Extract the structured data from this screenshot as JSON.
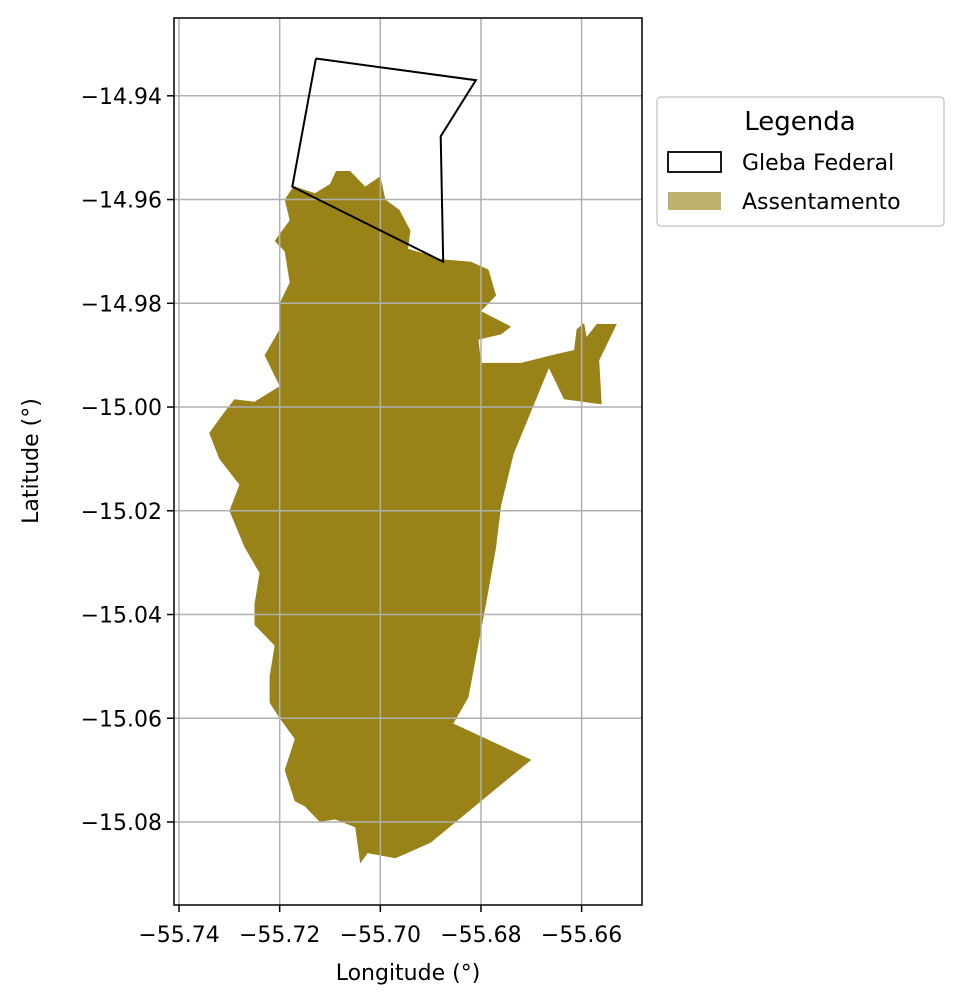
{
  "map": {
    "xlabel": "Longitude (°)",
    "ylabel": "Latitude (°)",
    "x_ticks": [
      -55.74,
      -55.72,
      -55.7,
      -55.68,
      -55.66
    ],
    "x_tick_labels": [
      "−55.74",
      "−55.72",
      "−55.70",
      "−55.68",
      "−55.66"
    ],
    "y_ticks": [
      -14.94,
      -14.96,
      -14.98,
      -15.0,
      -15.02,
      -15.04,
      -15.06,
      -15.08
    ],
    "y_tick_labels": [
      "−14.94",
      "−14.96",
      "−14.98",
      "−15.00",
      "−15.02",
      "−15.04",
      "−15.06",
      "−15.08"
    ],
    "xlim": [
      -55.741,
      -55.648
    ],
    "ylim": [
      -15.096,
      -14.925
    ],
    "grid": true,
    "legend": {
      "title": "Legenda",
      "placement": "upper right, outside axes",
      "items": [
        {
          "label": "Gleba Federal",
          "style": "outline",
          "color": "#000000"
        },
        {
          "label": "Assentamento",
          "style": "fill",
          "color": "#bfb26f"
        }
      ]
    },
    "layers": {
      "gleba_federal": {
        "stroke": "#000000",
        "coords": [
          [
            -55.7128,
            -14.9328
          ],
          [
            -55.681,
            -14.937
          ],
          [
            -55.688,
            -14.9478
          ],
          [
            -55.6875,
            -14.972
          ],
          [
            -55.7175,
            -14.9575
          ],
          [
            -55.7128,
            -14.9328
          ]
        ]
      },
      "assentamento": {
        "fill": "#998319",
        "coords": [
          [
            -55.7172,
            -14.9574
          ],
          [
            -55.713,
            -14.9588
          ],
          [
            -55.71,
            -14.957
          ],
          [
            -55.7088,
            -14.9545
          ],
          [
            -55.706,
            -14.9545
          ],
          [
            -55.703,
            -14.9575
          ],
          [
            -55.7,
            -14.9555
          ],
          [
            -55.699,
            -14.96
          ],
          [
            -55.6962,
            -14.962
          ],
          [
            -55.694,
            -14.966
          ],
          [
            -55.6945,
            -14.9695
          ],
          [
            -55.691,
            -14.9705
          ],
          [
            -55.688,
            -14.9715
          ],
          [
            -55.682,
            -14.972
          ],
          [
            -55.6785,
            -14.9735
          ],
          [
            -55.677,
            -14.9785
          ],
          [
            -55.68,
            -14.9815
          ],
          [
            -55.674,
            -14.9845
          ],
          [
            -55.676,
            -14.986
          ],
          [
            -55.6805,
            -14.987
          ],
          [
            -55.68,
            -14.9915
          ],
          [
            -55.672,
            -14.9915
          ],
          [
            -55.666,
            -14.99
          ],
          [
            -55.6615,
            -14.989
          ],
          [
            -55.661,
            -14.985
          ],
          [
            -55.6595,
            -14.9838
          ],
          [
            -55.659,
            -14.9865
          ],
          [
            -55.657,
            -14.984
          ],
          [
            -55.653,
            -14.984
          ],
          [
            -55.6565,
            -14.991
          ],
          [
            -55.656,
            -14.9995
          ],
          [
            -55.6635,
            -14.9985
          ],
          [
            -55.6665,
            -14.9925
          ],
          [
            -55.6735,
            -15.009
          ],
          [
            -55.676,
            -15.019
          ],
          [
            -55.677,
            -15.027
          ],
          [
            -55.679,
            -15.038
          ],
          [
            -55.6825,
            -15.056
          ],
          [
            -55.6855,
            -15.061
          ],
          [
            -55.67,
            -15.068
          ],
          [
            -55.6775,
            -15.074
          ],
          [
            -55.69,
            -15.084
          ],
          [
            -55.697,
            -15.087
          ],
          [
            -55.7025,
            -15.086
          ],
          [
            -55.704,
            -15.088
          ],
          [
            -55.705,
            -15.081
          ],
          [
            -55.709,
            -15.0795
          ],
          [
            -55.712,
            -15.08
          ],
          [
            -55.715,
            -15.077
          ],
          [
            -55.717,
            -15.076
          ],
          [
            -55.719,
            -15.07
          ],
          [
            -55.717,
            -15.064
          ],
          [
            -55.72,
            -15.06
          ],
          [
            -55.722,
            -15.057
          ],
          [
            -55.722,
            -15.052
          ],
          [
            -55.721,
            -15.046
          ],
          [
            -55.725,
            -15.042
          ],
          [
            -55.725,
            -15.038
          ],
          [
            -55.724,
            -15.032
          ],
          [
            -55.727,
            -15.027
          ],
          [
            -55.73,
            -15.02
          ],
          [
            -55.728,
            -15.015
          ],
          [
            -55.732,
            -15.01
          ],
          [
            -55.734,
            -15.005
          ],
          [
            -55.731,
            -15.001
          ],
          [
            -55.729,
            -14.9985
          ],
          [
            -55.725,
            -14.999
          ],
          [
            -55.72,
            -14.996
          ],
          [
            -55.723,
            -14.99
          ],
          [
            -55.72,
            -14.985
          ],
          [
            -55.72,
            -14.98
          ],
          [
            -55.718,
            -14.976
          ],
          [
            -55.719,
            -14.97
          ],
          [
            -55.721,
            -14.968
          ],
          [
            -55.718,
            -14.964
          ],
          [
            -55.719,
            -14.96
          ],
          [
            -55.7172,
            -14.9574
          ]
        ]
      }
    }
  }
}
